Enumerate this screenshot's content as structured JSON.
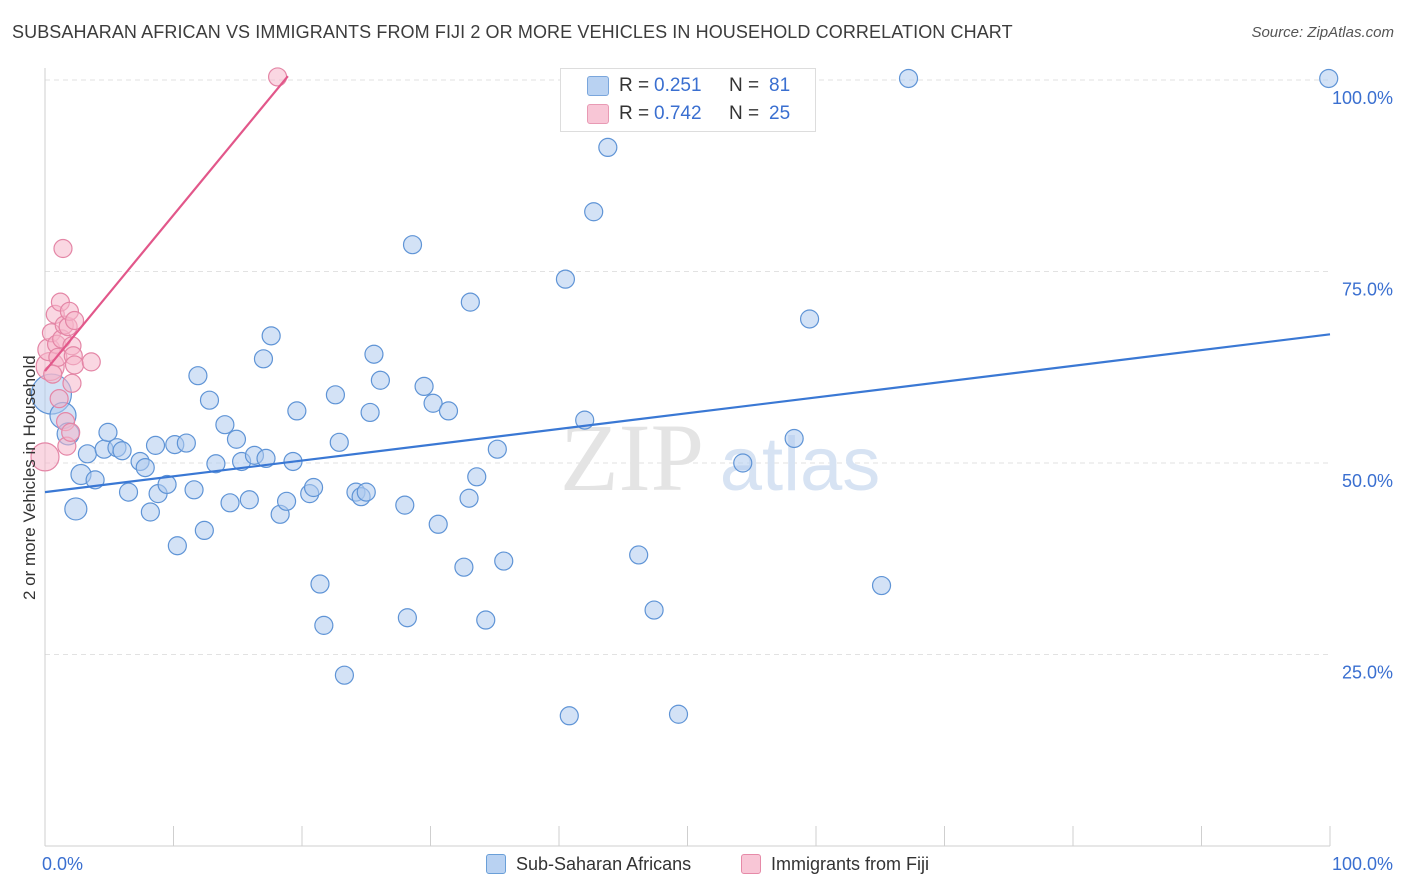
{
  "title": "SUBSAHARAN AFRICAN VS IMMIGRANTS FROM FIJI 2 OR MORE VEHICLES IN HOUSEHOLD CORRELATION CHART",
  "source": "Source: ZipAtlas.com",
  "watermark": {
    "zip": "ZIP",
    "atlas": "atlas"
  },
  "legend_top": {
    "rows": [
      {
        "r_label": "R = ",
        "r_value": "0.251",
        "n_label": "N = ",
        "n_value": "81",
        "color": "#a9c8ef"
      },
      {
        "r_label": "R = ",
        "r_value": "0.742",
        "n_label": "N = ",
        "n_value": "25",
        "color": "#f6b9cc"
      }
    ]
  },
  "legend_bottom": [
    {
      "label": "Sub-Saharan Africans",
      "color": "#a9c8ef",
      "border": "#6a9fd8"
    },
    {
      "label": "Immigrants from Fiji",
      "color": "#f6c6d4",
      "border": "#e68aa8"
    }
  ],
  "colors": {
    "blue": "#3a78d4",
    "blue_fill": "#aecbee",
    "pink": "#e2578a",
    "pink_fill": "#f5b7ca",
    "axis_text": "#3a6fd0"
  },
  "chart_data": {
    "type": "scatter",
    "title": "SUBSAHARAN AFRICAN VS IMMIGRANTS FROM FIJI 2 OR MORE VEHICLES IN HOUSEHOLD CORRELATION CHART",
    "xlabel": "",
    "ylabel": "2 or more Vehicles in Household",
    "xlim": [
      0,
      100
    ],
    "ylim": [
      0,
      102
    ],
    "x_tick_labels": [
      "0.0%",
      "100.0%"
    ],
    "y_ticks": [
      25,
      50,
      75,
      100
    ],
    "y_tick_labels": [
      "25.0%",
      "50.0%",
      "75.0%",
      "100.0%"
    ],
    "grid": true,
    "series": [
      {
        "name": "Sub-Saharan Africans",
        "color": "#3a78d4",
        "trend": {
          "x": [
            0,
            100
          ],
          "y": [
            46.2,
            66.8
          ]
        },
        "points": [
          {
            "x": 0.5,
            "y": 59.0,
            "s": 20
          },
          {
            "x": 1.4,
            "y": 56.2,
            "s": 13
          },
          {
            "x": 1.8,
            "y": 53.8,
            "s": 11
          },
          {
            "x": 2.4,
            "y": 44.0,
            "s": 11
          },
          {
            "x": 2.8,
            "y": 48.5,
            "s": 10
          },
          {
            "x": 3.3,
            "y": 51.2,
            "s": 9
          },
          {
            "x": 3.9,
            "y": 47.8,
            "s": 9
          },
          {
            "x": 4.6,
            "y": 51.8,
            "s": 9
          },
          {
            "x": 4.9,
            "y": 54.0,
            "s": 9
          },
          {
            "x": 5.6,
            "y": 52.0,
            "s": 9
          },
          {
            "x": 6.0,
            "y": 51.6,
            "s": 9
          },
          {
            "x": 6.5,
            "y": 46.2,
            "s": 9
          },
          {
            "x": 7.4,
            "y": 50.2,
            "s": 9
          },
          {
            "x": 7.8,
            "y": 49.4,
            "s": 9
          },
          {
            "x": 8.2,
            "y": 43.6,
            "s": 9
          },
          {
            "x": 8.6,
            "y": 52.3,
            "s": 9
          },
          {
            "x": 8.8,
            "y": 46.0,
            "s": 9
          },
          {
            "x": 9.5,
            "y": 47.2,
            "s": 9
          },
          {
            "x": 10.1,
            "y": 52.4,
            "s": 9
          },
          {
            "x": 10.3,
            "y": 39.2,
            "s": 9
          },
          {
            "x": 11.0,
            "y": 52.6,
            "s": 9
          },
          {
            "x": 11.6,
            "y": 46.5,
            "s": 9
          },
          {
            "x": 11.9,
            "y": 61.4,
            "s": 9
          },
          {
            "x": 12.4,
            "y": 41.2,
            "s": 9
          },
          {
            "x": 12.8,
            "y": 58.2,
            "s": 9
          },
          {
            "x": 13.3,
            "y": 49.9,
            "s": 9
          },
          {
            "x": 14.0,
            "y": 55.0,
            "s": 9
          },
          {
            "x": 14.4,
            "y": 44.8,
            "s": 9
          },
          {
            "x": 14.9,
            "y": 53.1,
            "s": 9
          },
          {
            "x": 15.3,
            "y": 50.2,
            "s": 9
          },
          {
            "x": 15.9,
            "y": 45.2,
            "s": 9
          },
          {
            "x": 16.3,
            "y": 51.0,
            "s": 9
          },
          {
            "x": 17.0,
            "y": 63.6,
            "s": 9
          },
          {
            "x": 17.2,
            "y": 50.6,
            "s": 9
          },
          {
            "x": 17.6,
            "y": 66.6,
            "s": 9
          },
          {
            "x": 18.3,
            "y": 43.3,
            "s": 9
          },
          {
            "x": 18.8,
            "y": 45.0,
            "s": 9
          },
          {
            "x": 19.3,
            "y": 50.2,
            "s": 9
          },
          {
            "x": 19.6,
            "y": 56.8,
            "s": 9
          },
          {
            "x": 20.6,
            "y": 46.0,
            "s": 9
          },
          {
            "x": 20.9,
            "y": 46.8,
            "s": 9
          },
          {
            "x": 21.4,
            "y": 34.2,
            "s": 9
          },
          {
            "x": 21.7,
            "y": 28.8,
            "s": 9
          },
          {
            "x": 22.6,
            "y": 58.9,
            "s": 9
          },
          {
            "x": 22.9,
            "y": 52.7,
            "s": 9
          },
          {
            "x": 23.3,
            "y": 22.3,
            "s": 9
          },
          {
            "x": 24.2,
            "y": 46.2,
            "s": 9
          },
          {
            "x": 24.6,
            "y": 45.6,
            "s": 9
          },
          {
            "x": 25.0,
            "y": 46.2,
            "s": 9
          },
          {
            "x": 25.3,
            "y": 56.6,
            "s": 9
          },
          {
            "x": 25.6,
            "y": 64.2,
            "s": 9
          },
          {
            "x": 26.1,
            "y": 60.8,
            "s": 9
          },
          {
            "x": 28.0,
            "y": 44.5,
            "s": 9
          },
          {
            "x": 28.2,
            "y": 29.8,
            "s": 9
          },
          {
            "x": 28.6,
            "y": 78.5,
            "s": 9
          },
          {
            "x": 29.5,
            "y": 60.0,
            "s": 9
          },
          {
            "x": 30.2,
            "y": 57.8,
            "s": 9
          },
          {
            "x": 30.6,
            "y": 42.0,
            "s": 9
          },
          {
            "x": 31.4,
            "y": 56.8,
            "s": 9
          },
          {
            "x": 32.6,
            "y": 36.4,
            "s": 9
          },
          {
            "x": 33.0,
            "y": 45.4,
            "s": 9
          },
          {
            "x": 33.1,
            "y": 71.0,
            "s": 9
          },
          {
            "x": 33.6,
            "y": 48.2,
            "s": 9
          },
          {
            "x": 34.3,
            "y": 29.5,
            "s": 9
          },
          {
            "x": 35.2,
            "y": 51.8,
            "s": 9
          },
          {
            "x": 35.7,
            "y": 37.2,
            "s": 9
          },
          {
            "x": 40.5,
            "y": 74.0,
            "s": 9
          },
          {
            "x": 40.8,
            "y": 17.0,
            "s": 9
          },
          {
            "x": 42.0,
            "y": 55.6,
            "s": 9
          },
          {
            "x": 42.7,
            "y": 82.8,
            "s": 9
          },
          {
            "x": 43.8,
            "y": 91.2,
            "s": 9
          },
          {
            "x": 46.2,
            "y": 38.0,
            "s": 9
          },
          {
            "x": 47.4,
            "y": 30.8,
            "s": 9
          },
          {
            "x": 49.3,
            "y": 17.2,
            "s": 9
          },
          {
            "x": 54.3,
            "y": 50.0,
            "s": 9
          },
          {
            "x": 58.3,
            "y": 53.2,
            "s": 9
          },
          {
            "x": 59.5,
            "y": 68.8,
            "s": 9
          },
          {
            "x": 65.1,
            "y": 34.0,
            "s": 9
          },
          {
            "x": 67.2,
            "y": 100.2,
            "s": 9
          },
          {
            "x": 99.9,
            "y": 100.2,
            "s": 9
          }
        ]
      },
      {
        "name": "Immigrants from Fiji",
        "color": "#e2578a",
        "trend": {
          "x": [
            0,
            18.9
          ],
          "y": [
            62.0,
            100.5
          ]
        },
        "points": [
          {
            "x": 0.0,
            "y": 50.8,
            "s": 14
          },
          {
            "x": 0.4,
            "y": 62.6,
            "s": 14
          },
          {
            "x": 0.3,
            "y": 64.8,
            "s": 11
          },
          {
            "x": 0.5,
            "y": 67.0,
            "s": 9
          },
          {
            "x": 0.8,
            "y": 69.4,
            "s": 9
          },
          {
            "x": 0.9,
            "y": 65.5,
            "s": 9
          },
          {
            "x": 1.0,
            "y": 63.8,
            "s": 9
          },
          {
            "x": 1.1,
            "y": 58.4,
            "s": 9
          },
          {
            "x": 1.2,
            "y": 71.0,
            "s": 9
          },
          {
            "x": 1.3,
            "y": 66.2,
            "s": 9
          },
          {
            "x": 1.4,
            "y": 78.0,
            "s": 9
          },
          {
            "x": 1.5,
            "y": 68.0,
            "s": 9
          },
          {
            "x": 1.6,
            "y": 55.4,
            "s": 9
          },
          {
            "x": 1.7,
            "y": 52.2,
            "s": 9
          },
          {
            "x": 1.8,
            "y": 67.8,
            "s": 9
          },
          {
            "x": 1.9,
            "y": 69.8,
            "s": 9
          },
          {
            "x": 2.0,
            "y": 54.0,
            "s": 9
          },
          {
            "x": 2.1,
            "y": 65.3,
            "s": 9
          },
          {
            "x": 2.2,
            "y": 64.0,
            "s": 9
          },
          {
            "x": 2.3,
            "y": 68.6,
            "s": 9
          },
          {
            "x": 2.1,
            "y": 60.4,
            "s": 9
          },
          {
            "x": 2.3,
            "y": 62.8,
            "s": 9
          },
          {
            "x": 0.6,
            "y": 61.6,
            "s": 9
          },
          {
            "x": 3.6,
            "y": 63.2,
            "s": 9
          },
          {
            "x": 18.1,
            "y": 100.4,
            "s": 9
          }
        ]
      }
    ]
  }
}
